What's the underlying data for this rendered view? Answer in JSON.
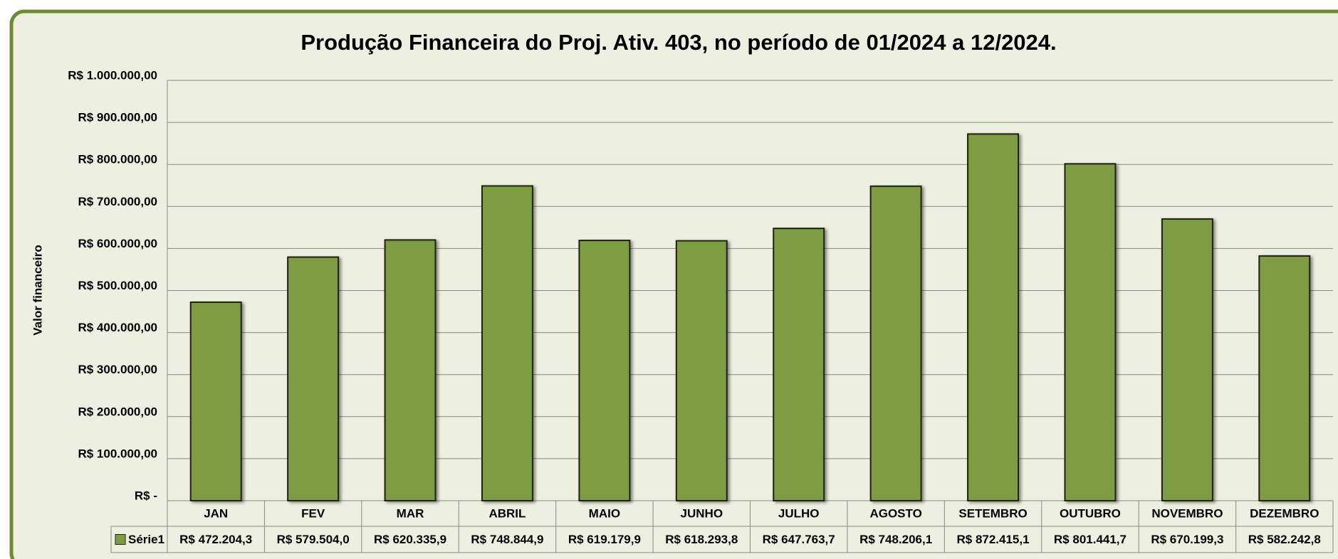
{
  "chart_data": {
    "type": "bar",
    "title": "Produção Financeira do Proj. Ativ. 403, no período de 01/2024 a 12/2024.",
    "y_axis_label": "Valor financeiro",
    "categories": [
      "JAN",
      "FEV",
      "MAR",
      "ABRIL",
      "MAIO",
      "JUNHO",
      "JULHO",
      "AGOSTO",
      "SETEMBRO",
      "OUTUBRO",
      "NOVEMBRO",
      "DEZEMBRO"
    ],
    "series": [
      {
        "name": "Série1",
        "color": "#7e9c42",
        "values": [
          472204.3,
          579504.0,
          620335.9,
          748844.9,
          619179.9,
          618293.8,
          647763.7,
          748206.1,
          872415.1,
          801441.7,
          670199.3,
          582242.8
        ],
        "value_labels": [
          "R$ 472.204,3",
          "R$ 579.504,0",
          "R$ 620.335,9",
          "R$ 748.844,9",
          "R$ 619.179,9",
          "R$ 618.293,8",
          "R$ 647.763,7",
          "R$ 748.206,1",
          "R$ 872.415,1",
          "R$ 801.441,7",
          "R$ 670.199,3",
          "R$ 582.242,8"
        ]
      }
    ],
    "ylim": [
      0,
      1000000
    ],
    "yticks": [
      {
        "value": 0,
        "label": "R$ -"
      },
      {
        "value": 100000,
        "label": "R$ 100.000,00"
      },
      {
        "value": 200000,
        "label": "R$ 200.000,00"
      },
      {
        "value": 300000,
        "label": "R$ 300.000,00"
      },
      {
        "value": 400000,
        "label": "R$ 400.000,00"
      },
      {
        "value": 500000,
        "label": "R$ 500.000,00"
      },
      {
        "value": 600000,
        "label": "R$ 600.000,00"
      },
      {
        "value": 700000,
        "label": "R$ 700.000,00"
      },
      {
        "value": 800000,
        "label": "R$ 800.000,00"
      },
      {
        "value": 900000,
        "label": "R$ 900.000,00"
      },
      {
        "value": 1000000,
        "label": "R$ 1.000.000,00"
      }
    ],
    "grid": true
  }
}
